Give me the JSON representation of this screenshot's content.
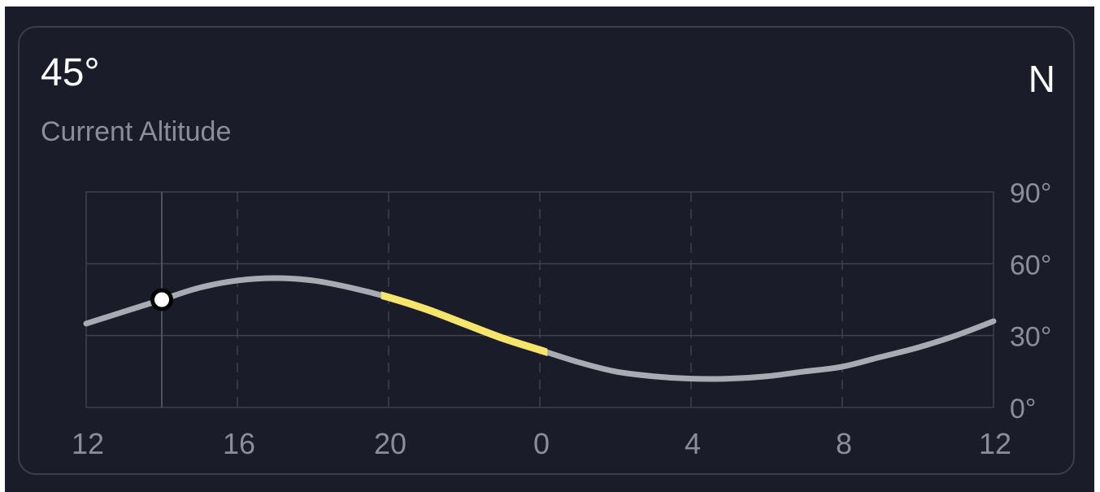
{
  "header": {
    "altitude_value": "45°",
    "altitude_label": "Current Altitude",
    "direction": "N"
  },
  "colors": {
    "background": "#1a1c29",
    "curve": "#a9abb2",
    "highlight": "#f5e66b",
    "grid": "#3e414e"
  },
  "chart_data": {
    "type": "line",
    "title": "",
    "xlabel": "",
    "ylabel": "",
    "x_ticks": [
      "12",
      "16",
      "20",
      "0",
      "4",
      "8",
      "12"
    ],
    "y_ticks": [
      "0°",
      "30°",
      "60°",
      "90°"
    ],
    "xlim": [
      12,
      36
    ],
    "ylim": [
      0,
      90
    ],
    "current_hour": 14,
    "current_altitude": 45,
    "highlight_range": [
      19.8,
      24.2
    ],
    "series": [
      {
        "x": [
          12,
          13,
          14,
          15,
          16,
          17,
          18,
          19,
          20,
          21,
          22,
          23,
          24,
          25,
          26,
          27,
          28,
          29,
          30,
          31,
          32,
          33,
          34,
          35,
          36
        ],
        "y": [
          35,
          40,
          45,
          50,
          53,
          54,
          53,
          50,
          46,
          41,
          35,
          29,
          24,
          19,
          15,
          13,
          12,
          12,
          13,
          15,
          17,
          21,
          25,
          30,
          36
        ]
      }
    ]
  }
}
